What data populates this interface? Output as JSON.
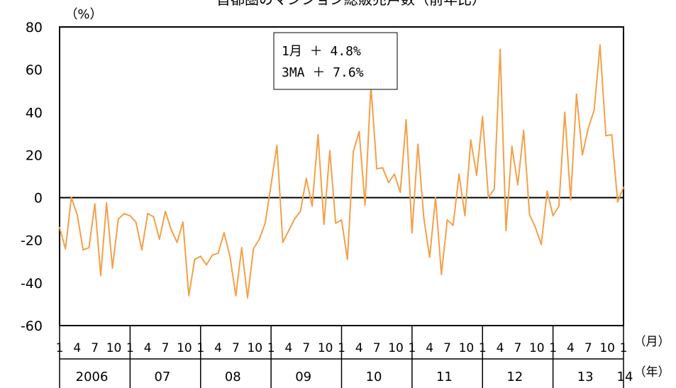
{
  "chart_data": {
    "type": "line",
    "title": "首都圏のマンション総販売戸数（前年比）",
    "ylabel": "（%）",
    "x_unit_month": "（月）",
    "x_unit_year": "（年）",
    "ylim": [
      -60,
      80
    ],
    "yticks": [
      "80",
      "60",
      "40",
      "20",
      "0",
      "-20",
      "-40",
      "-60"
    ],
    "month_ticks": [
      "1",
      "4",
      "7",
      "10"
    ],
    "year_labels": [
      "2006",
      "07",
      "08",
      "09",
      "10",
      "11",
      "12",
      "13",
      "14"
    ],
    "start": "2006-01",
    "end": "2014-01",
    "legend": [
      "1月 ＋ 4.8%",
      "3MA ＋ 7.6%"
    ],
    "line_color": "#f4a048",
    "series": [
      {
        "values": [
          -14,
          -24,
          0,
          -8,
          -24.5,
          -23.5,
          -3,
          -36.5,
          -2.5,
          -33,
          -10,
          -7.5,
          -8.5,
          -11.5,
          -24.5,
          -7.5,
          -9,
          -19.5,
          -6.5,
          -15,
          -21,
          -11.5,
          -46,
          -29,
          -27.5,
          -31.5,
          -27,
          -26,
          -16.5,
          -27.5,
          -46,
          -23.5,
          -47,
          -24,
          -19.5,
          -12,
          6,
          24.5,
          -21,
          -15.5,
          -10,
          -6.5,
          9,
          -4,
          29.5,
          -12.5,
          22,
          -12,
          -10.5,
          -29,
          21.5,
          31,
          -3.5,
          52.5,
          13.5,
          14,
          7,
          11,
          2.5,
          36.5,
          -16.5,
          25,
          -9.5,
          -28,
          0,
          -36,
          -10.5,
          -13,
          11,
          -8.5,
          27,
          10.5,
          38,
          0,
          4,
          69.5,
          -15.5,
          24,
          6,
          31.5,
          -8,
          -14,
          -22,
          3,
          -8.5,
          -4,
          40,
          -1,
          48.5,
          20,
          32.5,
          41,
          71.5,
          29,
          29.5,
          -2,
          4.8
        ]
      }
    ]
  }
}
